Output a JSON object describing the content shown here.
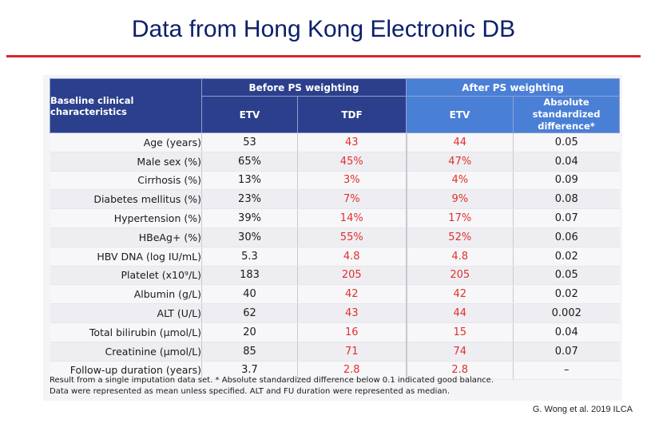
{
  "slide": {
    "title": "Data from Hong Kong Electronic DB",
    "citation": "G. Wong et al. 2019 ILCA"
  },
  "table": {
    "header": {
      "label": "Baseline clinical characteristics",
      "before_group": "Before PS weighting",
      "after_group": "After PS weighting",
      "col_etv_before": "ETV",
      "col_tdf": "TDF",
      "col_etv_after": "ETV",
      "col_asd": "Absolute standardized difference*"
    },
    "rows": [
      {
        "label": "Age (years)",
        "etv": "53",
        "tdf": "43",
        "etv_after": "44",
        "asd": "0.05"
      },
      {
        "label": "Male sex (%)",
        "etv": "65%",
        "tdf": "45%",
        "etv_after": "47%",
        "asd": "0.04"
      },
      {
        "label": "Cirrhosis (%)",
        "etv": "13%",
        "tdf": "3%",
        "etv_after": "4%",
        "asd": "0.09"
      },
      {
        "label": "Diabetes mellitus (%)",
        "etv": "23%",
        "tdf": "7%",
        "etv_after": "9%",
        "asd": "0.08"
      },
      {
        "label": "Hypertension (%)",
        "etv": "39%",
        "tdf": "14%",
        "etv_after": "17%",
        "asd": "0.07"
      },
      {
        "label": "HBeAg+ (%)",
        "etv": "30%",
        "tdf": "55%",
        "etv_after": "52%",
        "asd": "0.06"
      },
      {
        "label": "HBV DNA (log IU/mL)",
        "etv": "5.3",
        "tdf": "4.8",
        "etv_after": "4.8",
        "asd": "0.02"
      },
      {
        "label": "Platelet (x10⁹/L)",
        "etv": "183",
        "tdf": "205",
        "etv_after": "205",
        "asd": "0.05"
      },
      {
        "label": "Albumin (g/L)",
        "etv": "40",
        "tdf": "42",
        "etv_after": "42",
        "asd": "0.02"
      },
      {
        "label": "ALT (U/L)",
        "etv": "62",
        "tdf": "43",
        "etv_after": "44",
        "asd": "0.002"
      },
      {
        "label": "Total bilirubin (μmol/L)",
        "etv": "20",
        "tdf": "16",
        "etv_after": "15",
        "asd": "0.04"
      },
      {
        "label": "Creatinine (μmol/L)",
        "etv": "85",
        "tdf": "71",
        "etv_after": "74",
        "asd": "0.07"
      },
      {
        "label": "Follow-up duration (years)",
        "etv": "3.7",
        "tdf": "2.8",
        "etv_after": "2.8",
        "asd": "–"
      }
    ],
    "footnote_1": "Result from a single imputation data set. * Absolute standardized difference below 0.1 indicated good balance.",
    "footnote_2": "Data were represented as mean unless specified. ALT and FU duration were represented as median."
  },
  "colors": {
    "title": "#0b1f6b",
    "rule": "#d6262b",
    "header_before": "#2b3f8c",
    "header_after": "#4a7fd6",
    "tdf_values": "#e0302c"
  }
}
